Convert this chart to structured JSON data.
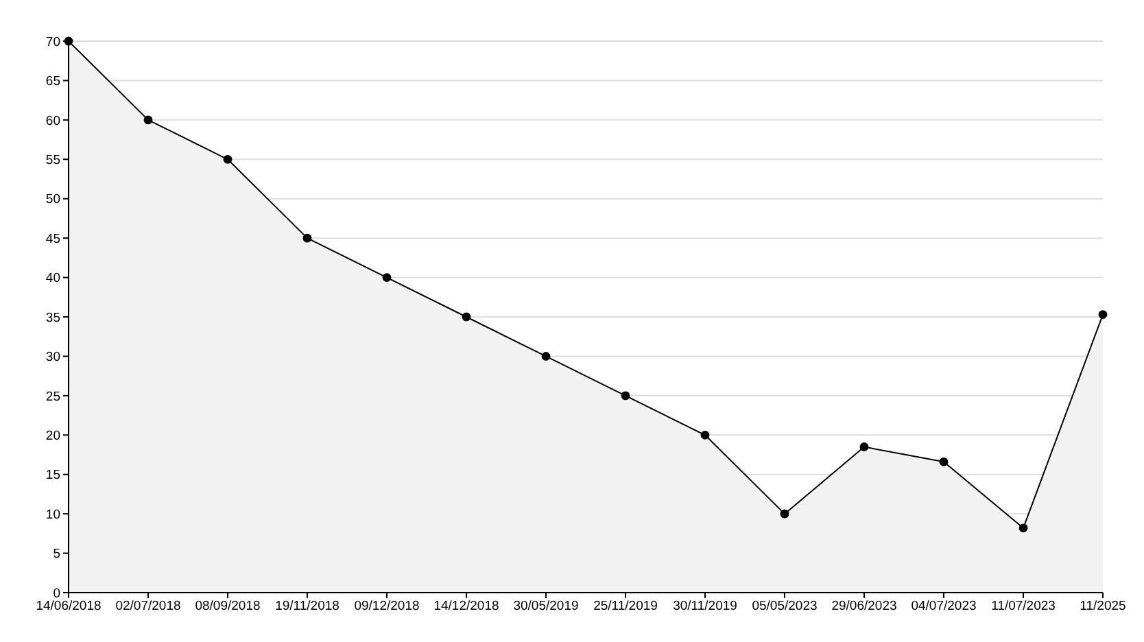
{
  "chart_data": {
    "type": "area",
    "categories": [
      "14/06/2018",
      "02/07/2018",
      "08/09/2018",
      "19/11/2018",
      "09/12/2018",
      "14/12/2018",
      "30/05/2019",
      "25/11/2019",
      "30/11/2019",
      "05/05/2023",
      "29/06/2023",
      "04/07/2023",
      "11/07/2023",
      "11/2025"
    ],
    "series": [
      {
        "color": "#000000",
        "values": [
          70,
          60,
          55,
          45,
          40,
          35,
          30,
          25,
          20,
          10,
          18.5,
          16.6,
          8.2,
          35.3
        ]
      }
    ],
    "ylim": [
      0,
      70
    ],
    "yticks": [
      0,
      5,
      10,
      15,
      20,
      25,
      30,
      35,
      40,
      45,
      50,
      55,
      60,
      65,
      70
    ],
    "grid": "y",
    "marker": "circle",
    "line_style": "solid"
  }
}
